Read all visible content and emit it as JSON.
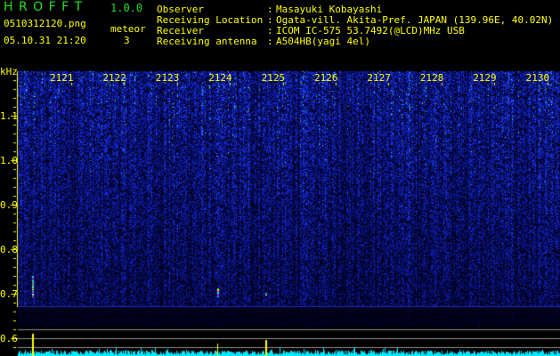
{
  "header": {
    "app_title": "H R O F F T",
    "version": "1.0.0",
    "filename": "0510312120.png",
    "datetime": "05.10.31 21:20",
    "meteor_label": "meteor",
    "meteor_count": "3"
  },
  "info": [
    {
      "label": "Observer",
      "value": "Masayuki Kobayashi"
    },
    {
      "label": "Receiving Location",
      "value": "Ogata-vill. Akita-Pref. JAPAN (139.96E, 40.02N)"
    },
    {
      "label": "Receiver",
      "value": "ICOM IC-575 53.7492(@LCD)MHz USB"
    },
    {
      "label": "Receiving antenna",
      "value": "A504HB(yagi 4el)"
    }
  ],
  "spectrogram": {
    "y_unit": "kHz",
    "y_ticks": [
      "1.1",
      "1.0",
      "0.9",
      "0.8",
      "0.7",
      "0.6"
    ],
    "time_ticks": [
      "2121",
      "2122",
      "2123",
      "2124",
      "2125",
      "2126",
      "2127",
      "2128",
      "2129",
      "2130"
    ],
    "colors": {
      "noise": "#1a2cff",
      "text": "#ffff00",
      "level": "#00e8ff",
      "meteor_bar": "#ffff00"
    }
  }
}
